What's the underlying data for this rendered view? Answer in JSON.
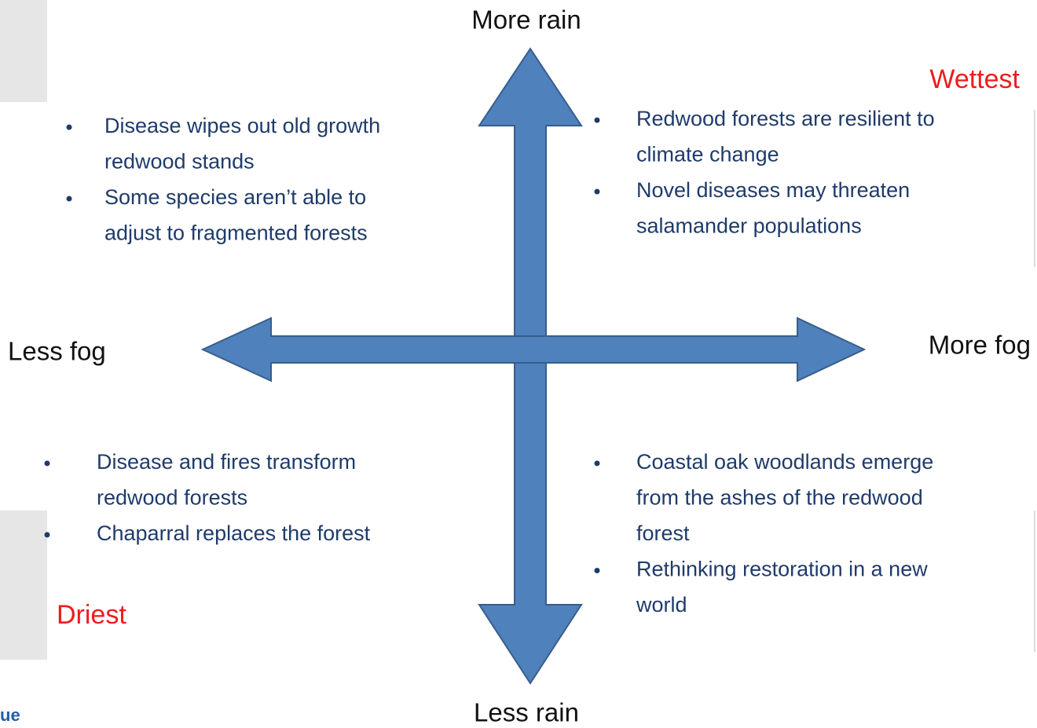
{
  "axes": {
    "top": "More rain",
    "bottom": "Less rain",
    "left": "Less fog",
    "right": "More fog"
  },
  "corners": {
    "wettest": "Wettest",
    "driest": "Driest"
  },
  "logo_fragment": "ue",
  "quadrants": {
    "top_left": [
      [
        "Disease wipes out old growth",
        "redwood stands"
      ],
      [
        "Some species aren’t able to",
        "adjust to fragmented forests"
      ]
    ],
    "top_right": [
      [
        "Redwood forests are resilient to",
        "climate change"
      ],
      [
        "Novel diseases may threaten",
        "salamander populations"
      ]
    ],
    "bottom_left": [
      [
        "Disease and fires transform",
        "redwood forests"
      ],
      [
        "Chaparral replaces the forest"
      ]
    ],
    "bottom_right": [
      [
        "Coastal oak woodlands emerge",
        "from the ashes of the redwood",
        "forest"
      ],
      [
        "Rethinking restoration in a new",
        "world"
      ]
    ]
  }
}
